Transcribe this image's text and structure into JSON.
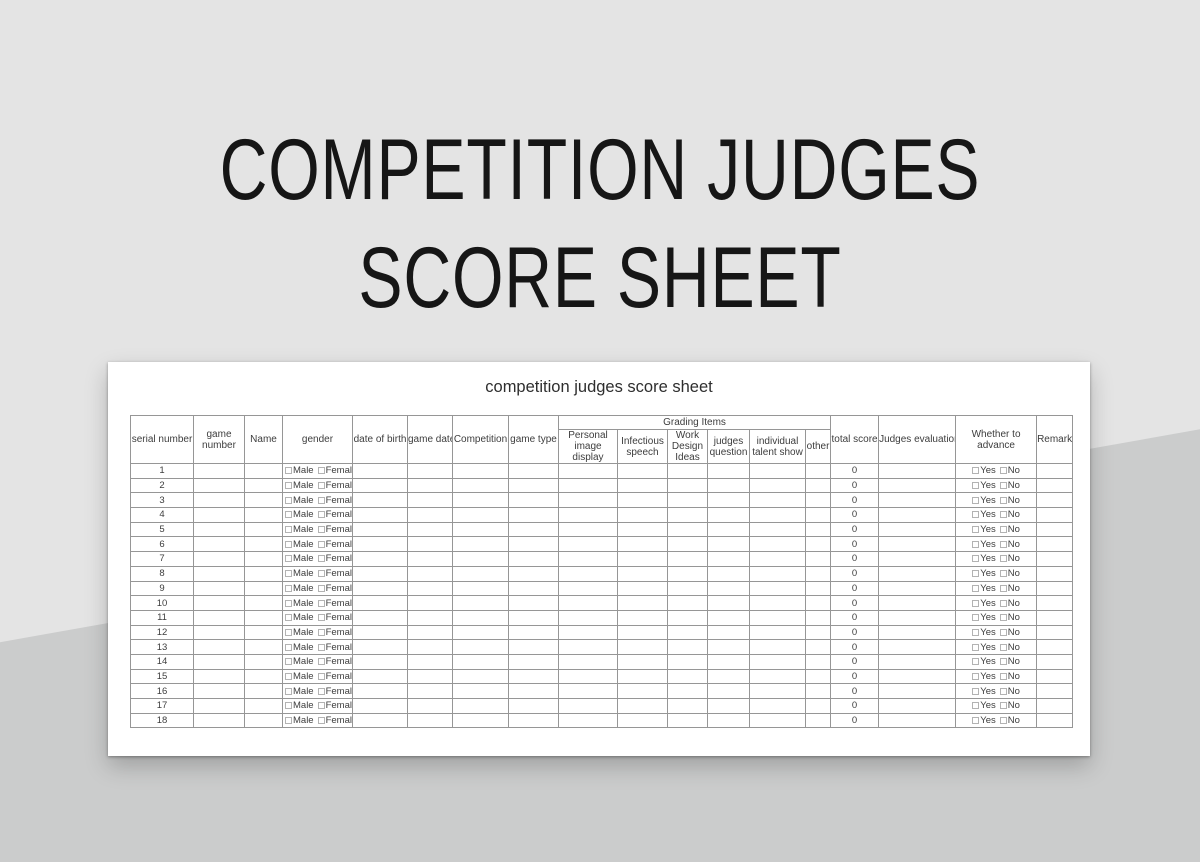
{
  "hero_title": {
    "line1": "COMPETITION JUDGES",
    "line2": "SCORE SHEET"
  },
  "colors": {
    "page_background": "#e4e4e4",
    "page_background_accent": "#cbcccc",
    "card_background": "#ffffff",
    "table_border": "#969696",
    "text": "#3d3d3d",
    "title_text": "#161616"
  },
  "table": {
    "title": "competition judges score sheet",
    "headers": {
      "serial_number": "serial number",
      "game_number": "game number",
      "name": "Name",
      "gender": "gender",
      "date_of_birth": "date of birth",
      "game_date": "game date",
      "competition": "Competition",
      "game_type": "game type",
      "grading_group": "Grading Items",
      "grading_items": [
        "Personal image display",
        "Infectious speech",
        "Work Design Ideas",
        "judges question",
        "individual talent show",
        "other"
      ],
      "total_score": "total score",
      "judges_evaluation": "Judges evaluation",
      "whether_to_advance": "Whether to advance",
      "remark": "Remark"
    },
    "gender_options": [
      "Male",
      "Female"
    ],
    "advance_options": [
      "Yes",
      "No"
    ],
    "rows": [
      {
        "serial": "1",
        "total_score": "0"
      },
      {
        "serial": "2",
        "total_score": "0"
      },
      {
        "serial": "3",
        "total_score": "0"
      },
      {
        "serial": "4",
        "total_score": "0"
      },
      {
        "serial": "5",
        "total_score": "0"
      },
      {
        "serial": "6",
        "total_score": "0"
      },
      {
        "serial": "7",
        "total_score": "0"
      },
      {
        "serial": "8",
        "total_score": "0"
      },
      {
        "serial": "9",
        "total_score": "0"
      },
      {
        "serial": "10",
        "total_score": "0"
      },
      {
        "serial": "11",
        "total_score": "0"
      },
      {
        "serial": "12",
        "total_score": "0"
      },
      {
        "serial": "13",
        "total_score": "0"
      },
      {
        "serial": "14",
        "total_score": "0"
      },
      {
        "serial": "15",
        "total_score": "0"
      },
      {
        "serial": "16",
        "total_score": "0"
      },
      {
        "serial": "17",
        "total_score": "0"
      },
      {
        "serial": "18",
        "total_score": "0"
      }
    ]
  }
}
